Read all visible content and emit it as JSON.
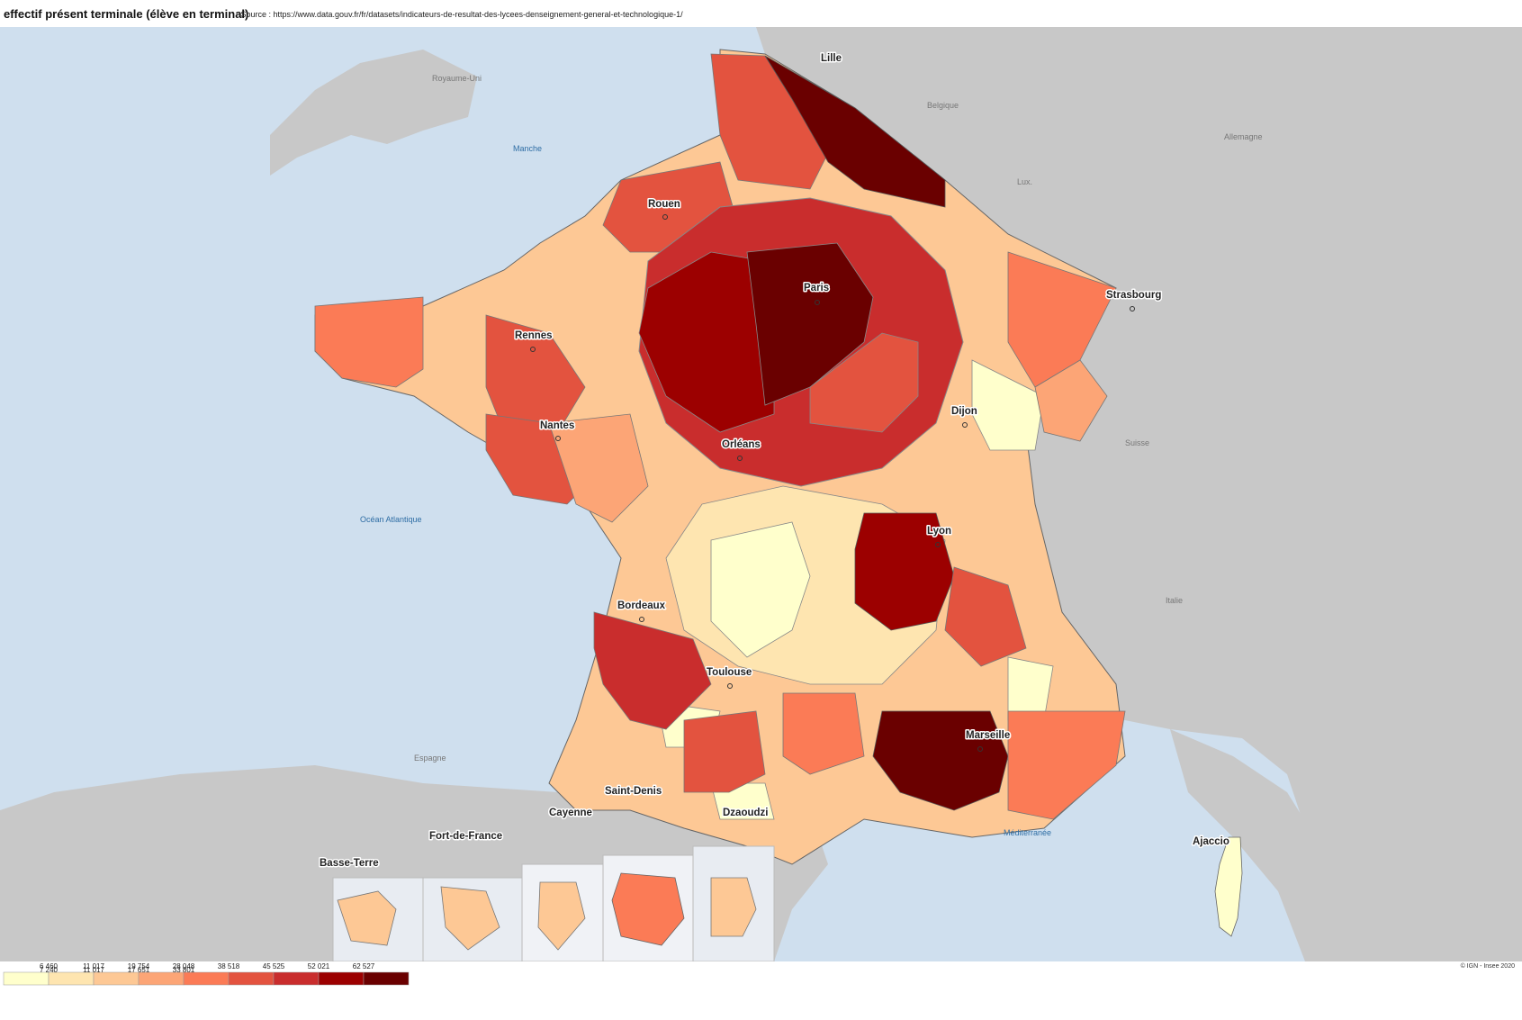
{
  "title": "effectif présent terminale (élève en terminal)",
  "source": "- Source : https://www.data.gouv.fr/fr/datasets/indicateurs-de-resultat-des-lycees-denseignement-general-et-technologique-1/",
  "credit": "© IGN - Insee 2020",
  "map": {
    "type": "cartogram",
    "countries": [
      "Royaume-Uni",
      "Belgique",
      "Lux.",
      "Allemagne",
      "Suisse",
      "Italie",
      "Espagne"
    ],
    "seas": [
      "Manche",
      "Océan Atlantique",
      "Méditerranée"
    ],
    "cities": [
      "Lille",
      "Rouen",
      "Paris",
      "Strasbourg",
      "Rennes",
      "Nantes",
      "Dijon",
      "Orléans",
      "Lyon",
      "Bordeaux",
      "Toulouse",
      "Marseille",
      "Ajaccio"
    ],
    "overseas": [
      "Basse-Terre",
      "Fort-de-France",
      "Cayenne",
      "Saint-Denis",
      "Dzaoudzi"
    ]
  },
  "legend": {
    "breaks_top": [
      "6 460",
      "11 017",
      "19 754",
      "28 048",
      "38 518",
      "45 525",
      "52 021",
      "62 527"
    ],
    "breaks_bottom": [
      "7 240",
      "11 017",
      "17 651",
      "33 801"
    ],
    "colors": [
      "#ffffcc",
      "#fee5b0",
      "#fdc895",
      "#fca576",
      "#fb7b56",
      "#e3533f",
      "#c92d2d",
      "#9c0000",
      "#6a0000"
    ]
  }
}
